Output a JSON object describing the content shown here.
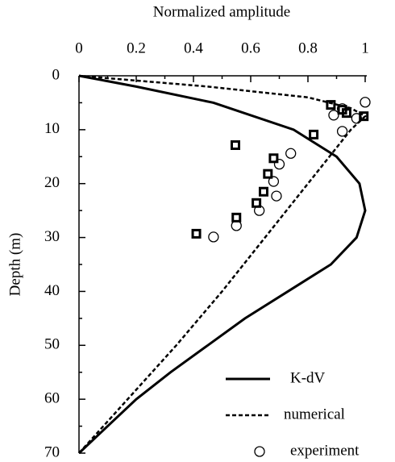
{
  "chart_data": {
    "type": "line",
    "title": "Normalized amplitude",
    "y_label": "Depth (m)",
    "xlim": [
      0,
      1
    ],
    "xticks": [
      0,
      0.2,
      0.4,
      0.6,
      0.8,
      1
    ],
    "ylim": [
      0,
      70
    ],
    "yticks": [
      0,
      10,
      20,
      30,
      40,
      50,
      60,
      70
    ],
    "y_inverted": true,
    "x_axis_position": "top",
    "series": [
      {
        "name": "K-dV",
        "color": "#000",
        "style": "solid",
        "x": [
          0,
          0.2,
          0.47,
          0.75,
          0.9,
          0.98,
          1.0,
          0.97,
          0.88,
          0.73,
          0.58,
          0.45,
          0.32,
          0.2,
          0.1,
          0
        ],
        "values": [
          0,
          2,
          5,
          10,
          15,
          20,
          25,
          30,
          35,
          40,
          45,
          50,
          55,
          60,
          65,
          70
        ]
      },
      {
        "name": "numerical",
        "color": "#000",
        "style": "dashed",
        "x": [
          0,
          0.45,
          0.8,
          0.95,
          1.0,
          0.95,
          0.8,
          0.65,
          0.5,
          0.34,
          0.17,
          0
        ],
        "values": [
          0,
          2,
          4,
          6,
          7.5,
          10,
          20,
          30,
          40,
          50,
          60,
          70
        ]
      },
      {
        "name": "experiment",
        "color": "#000",
        "marker": "square",
        "x": [
          0.88,
          0.92,
          0.935,
          0.995,
          0.82,
          0.68,
          0.66,
          0.645,
          0.62,
          0.55,
          0.41
        ],
        "values": [
          5.4,
          6.3,
          6.9,
          7.5,
          10.9,
          15.3,
          18.2,
          21.5,
          23.6,
          26.3,
          29.3
        ]
      },
      {
        "color": "#000",
        "marker": "circle",
        "x": [
          1.0,
          0.89,
          0.92,
          0.97,
          0.92,
          0.74,
          0.7,
          0.68,
          0.69,
          0.63,
          0.55,
          0.47
        ],
        "values": [
          4.9,
          7.3,
          6.1,
          7.9,
          10.3,
          14.4,
          16.4,
          19.6,
          22.3,
          25,
          27.8,
          29.9
        ]
      }
    ]
  }
}
